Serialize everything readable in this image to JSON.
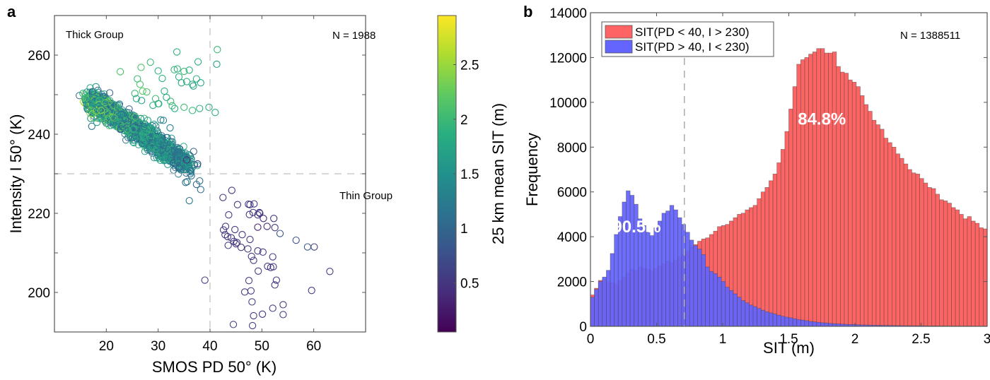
{
  "chart_data": [
    {
      "panel": "a",
      "type": "scatter",
      "title": "",
      "xlabel": "SMOS PD 50° (K)",
      "ylabel": "Intensity I 50° (K)",
      "xlim": [
        10,
        70
      ],
      "ylim": [
        190,
        270
      ],
      "xticks": [
        20,
        30,
        40,
        50,
        60
      ],
      "yticks": [
        200,
        220,
        240,
        260
      ],
      "xtick_labels": [
        "20",
        "30",
        "40",
        "50",
        "60"
      ],
      "ytick_labels": [
        "200",
        "220",
        "240",
        "260"
      ],
      "marker": "open-circle",
      "reference_lines": {
        "x": 40,
        "y": 230,
        "style": "dashed",
        "color": "#cccccc"
      },
      "annotations": {
        "top_left": "Thick Group",
        "top_right": "N = 1988",
        "right_middle": "Thin Group"
      },
      "colorbar": {
        "label": "25 km mean SIT (m)",
        "colormap": "viridis",
        "range": [
          0.05,
          2.95
        ],
        "ticks": [
          0.5,
          1,
          1.5,
          2,
          2.5
        ],
        "tick_labels": [
          "0.5",
          "1",
          "1.5",
          "2",
          "2.5"
        ]
      },
      "dense_cluster": {
        "description": "main thick-group band descending from (~17,249) to (~37,230)",
        "count": 1800,
        "sit_range": [
          0.9,
          2.6
        ]
      },
      "points": [
        [
          15.5,
          250.3,
          1.9
        ],
        [
          16,
          249.8,
          2.0
        ],
        [
          17.5,
          249,
          1.8
        ],
        [
          18,
          252,
          1.6
        ],
        [
          18.5,
          247,
          1.4
        ],
        [
          17,
          244,
          1.5
        ],
        [
          17.2,
          242,
          1.2
        ],
        [
          18.2,
          243,
          1.7
        ],
        [
          19,
          246,
          2.4
        ],
        [
          22.7,
          255.8,
          2.1
        ],
        [
          26.7,
          256.9,
          2.1
        ],
        [
          28.5,
          258.2,
          2.0
        ],
        [
          26,
          254,
          2.0
        ],
        [
          26.5,
          252.6,
          2.1
        ],
        [
          27,
          250.9,
          2.2
        ],
        [
          30,
          256,
          1.9
        ],
        [
          30.8,
          254.1,
          1.9
        ],
        [
          33.6,
          260.8,
          1.9
        ],
        [
          33.1,
          256.3,
          2.0
        ],
        [
          33.7,
          256.5,
          1.9
        ],
        [
          35,
          255.9,
          2.0
        ],
        [
          36,
          256.2,
          1.9
        ],
        [
          34,
          254.5,
          1.9
        ],
        [
          34.5,
          253,
          1.8
        ],
        [
          35.5,
          253.3,
          1.9
        ],
        [
          36.6,
          252.6,
          1.9
        ],
        [
          37.7,
          258.3,
          1.9
        ],
        [
          37.4,
          254,
          1.9
        ],
        [
          38.2,
          253,
          1.8
        ],
        [
          36.8,
          252.2,
          1.6
        ],
        [
          41.4,
          261.4,
          2.0
        ],
        [
          41.3,
          257.7,
          1.7
        ],
        [
          39.8,
          246.8,
          1.8
        ],
        [
          41,
          245.5,
          1.9
        ],
        [
          25.5,
          250.3,
          2.0
        ],
        [
          25.8,
          249,
          1.8
        ],
        [
          26.8,
          248.5,
          1.7
        ],
        [
          27.8,
          250.7,
          2.1
        ],
        [
          29.5,
          249,
          2.0
        ],
        [
          29,
          247.3,
          1.9
        ],
        [
          31.2,
          250.9,
          1.9
        ],
        [
          31.6,
          249.3,
          1.8
        ],
        [
          32.4,
          248.3,
          2.0
        ],
        [
          30,
          247.7,
          1.9
        ],
        [
          32.7,
          247.2,
          2.0
        ],
        [
          33.2,
          246.5,
          1.8
        ],
        [
          35,
          246.8,
          2.0
        ],
        [
          36.6,
          246,
          2.0
        ],
        [
          38,
          246.5,
          1.9
        ],
        [
          30.1,
          247.7,
          1.9
        ],
        [
          30.5,
          243.6,
          1.4
        ],
        [
          31,
          243.5,
          1.3
        ],
        [
          29.2,
          242.5,
          1.8
        ],
        [
          28.5,
          241.6,
          1.7
        ],
        [
          29.8,
          240.5,
          1.7
        ],
        [
          32.3,
          241.6,
          1.3
        ],
        [
          25.6,
          244.4,
          2.2
        ],
        [
          27.3,
          244,
          2.0
        ],
        [
          28,
          243.5,
          1.8
        ],
        [
          24,
          241.2,
          2.0
        ],
        [
          35.5,
          233.5,
          0.5
        ],
        [
          37.6,
          232.5,
          0.6
        ],
        [
          34,
          231.5,
          0.9
        ],
        [
          36.2,
          230,
          1.2
        ],
        [
          36.4,
          229.5,
          1.1
        ],
        [
          35.6,
          228,
          1.3
        ],
        [
          35.3,
          227.8,
          1.1
        ],
        [
          37.4,
          227.3,
          1.0
        ],
        [
          38,
          228.2,
          1.1
        ],
        [
          36,
          223.2,
          1.2
        ],
        [
          38.2,
          226,
          1.1
        ],
        [
          44.2,
          225.8,
          0.5
        ],
        [
          42.5,
          224,
          0.5
        ],
        [
          45.3,
          222.2,
          0.5
        ],
        [
          47.4,
          222.3,
          0.5
        ],
        [
          47.7,
          222.2,
          0.5
        ],
        [
          48.5,
          222.4,
          0.5
        ],
        [
          43.6,
          219.6,
          0.6
        ],
        [
          47.6,
          219.7,
          0.5
        ],
        [
          48.3,
          220.2,
          0.5
        ],
        [
          49.5,
          220.2,
          0.5
        ],
        [
          49.6,
          220,
          0.5
        ],
        [
          49.2,
          219.6,
          0.5
        ],
        [
          50.3,
          218.7,
          0.4
        ],
        [
          52.3,
          218.7,
          0.5
        ],
        [
          43,
          216.7,
          0.5
        ],
        [
          42.6,
          215.8,
          0.5
        ],
        [
          44.8,
          215.9,
          0.5
        ],
        [
          49.2,
          216.5,
          0.3
        ],
        [
          51,
          216.7,
          0.4
        ],
        [
          52.5,
          216.4,
          0.5
        ],
        [
          53.5,
          214.9,
          0.8
        ],
        [
          42.9,
          214.6,
          0.5
        ],
        [
          43.4,
          214.1,
          0.5
        ],
        [
          44.1,
          213.8,
          0.5
        ],
        [
          46.2,
          214.6,
          0.5
        ],
        [
          47.7,
          213.4,
          0.5
        ],
        [
          44.6,
          212.9,
          0.5
        ],
        [
          45,
          212.3,
          0.5
        ],
        [
          45.2,
          212.6,
          0.5
        ],
        [
          43.5,
          211.9,
          0.6
        ],
        [
          46,
          211.4,
          0.5
        ],
        [
          47.3,
          211,
          0.5
        ],
        [
          49.2,
          210.5,
          0.5
        ],
        [
          50.2,
          210.2,
          0.5
        ],
        [
          56.6,
          213.2,
          0.8
        ],
        [
          58.8,
          211.5,
          0.9
        ],
        [
          60.1,
          211.5,
          0.6
        ],
        [
          48,
          209.1,
          0.5
        ],
        [
          52.1,
          209,
          0.5
        ],
        [
          48.4,
          208.1,
          0.5
        ],
        [
          51.1,
          206.6,
          0.5
        ],
        [
          51.7,
          206.3,
          0.5
        ],
        [
          52.2,
          206.5,
          0.5
        ],
        [
          49.3,
          205.4,
          0.6
        ],
        [
          63.1,
          205.3,
          0.6
        ],
        [
          39,
          203.1,
          0.6
        ],
        [
          47.5,
          203,
          0.6
        ],
        [
          52.8,
          203.1,
          0.5
        ],
        [
          52.5,
          201.9,
          0.5
        ],
        [
          59.6,
          200.5,
          0.5
        ],
        [
          47.9,
          200.4,
          0.6
        ],
        [
          46.7,
          200.1,
          0.5
        ],
        [
          48.1,
          197.6,
          0.6
        ],
        [
          54.1,
          196.9,
          0.5
        ],
        [
          52.1,
          196,
          0.6
        ],
        [
          48.4,
          194.1,
          0.6
        ],
        [
          50.1,
          194.5,
          0.5
        ],
        [
          54.1,
          194.4,
          0.6
        ],
        [
          44.5,
          191.9,
          0.6
        ],
        [
          48.2,
          191.6,
          0.6
        ]
      ]
    },
    {
      "panel": "b",
      "type": "bar",
      "subtype": "overlapping-histogram",
      "title": "",
      "xlabel": "SIT (m)",
      "ylabel": "Frequency",
      "xlim": [
        0,
        3
      ],
      "ylim": [
        0,
        14000
      ],
      "xticks": [
        0,
        0.5,
        1,
        1.5,
        2,
        2.5,
        3
      ],
      "yticks": [
        0,
        2000,
        4000,
        6000,
        8000,
        10000,
        12000,
        14000
      ],
      "xtick_labels": [
        "0",
        "0.5",
        "1",
        "1.5",
        "2",
        "2.5",
        "3"
      ],
      "ytick_labels": [
        "0",
        "2000",
        "4000",
        "6000",
        "8000",
        "10000",
        "12000",
        "14000"
      ],
      "bin_width": 0.03,
      "reference_line": {
        "x": 0.71,
        "style": "dashed",
        "color": "#aaaaaa"
      },
      "legend_position": "top-left",
      "annotations": {
        "top_right": "N = 1388511"
      },
      "series": [
        {
          "name": "SIT(PD < 40, I > 230)",
          "color": "#ff6464",
          "percent_label": "84.8%",
          "percent_label_at": [
            1.75,
            9000
          ],
          "values": [
            1400,
            1700,
            2050,
            2100,
            2000,
            1950,
            1900,
            2050,
            2200,
            2400,
            2550,
            2500,
            2650,
            2600,
            2550,
            2500,
            2600,
            2700,
            2800,
            2900,
            2850,
            2950,
            3100,
            3200,
            3350,
            3550,
            3650,
            3800,
            3900,
            3950,
            4100,
            4250,
            4450,
            4500,
            4550,
            4700,
            4850,
            5000,
            5050,
            5200,
            5300,
            5400,
            5700,
            6000,
            6200,
            6500,
            6800,
            7300,
            7900,
            8700,
            9700,
            10700,
            11700,
            11900,
            12000,
            12150,
            12250,
            12400,
            12400,
            12200,
            12200,
            12250,
            11600,
            11350,
            11300,
            11000,
            10900,
            10700,
            10300,
            9900,
            9600,
            9200,
            9000,
            8800,
            8400,
            8200,
            8000,
            7700,
            7500,
            7250,
            7000,
            6850,
            6800,
            6600,
            6400,
            6200,
            6150,
            5900,
            5650,
            5600,
            5500,
            5300,
            5200,
            5000,
            4800,
            4900,
            4700,
            4600,
            4400,
            4350
          ]
        },
        {
          "name": "SIT(PD > 40, I < 230)",
          "color": "#6464ff",
          "percent_label": "90.5%",
          "percent_label_at": [
            0.35,
            4200
          ],
          "values": [
            1300,
            1650,
            2000,
            2200,
            2500,
            3250,
            4100,
            4900,
            5550,
            6050,
            5850,
            5450,
            4800,
            4500,
            4200,
            4050,
            4400,
            4700,
            5050,
            5150,
            5400,
            5200,
            4850,
            4550,
            4200,
            3850,
            3600,
            3450,
            3200,
            2650,
            2450,
            2350,
            2200,
            2000,
            1750,
            1600,
            1450,
            1300,
            1150,
            1050,
            950,
            880,
            800,
            720,
            650,
            600,
            550,
            500,
            450,
            410,
            380,
            340,
            300,
            280,
            250,
            220,
            200,
            180,
            160,
            150,
            130,
            120,
            110,
            100,
            90,
            85,
            80,
            70,
            65,
            60,
            55,
            50,
            48,
            45,
            42,
            40,
            38,
            35,
            33,
            30,
            28,
            26,
            25,
            24,
            22,
            20,
            20,
            18,
            17,
            16,
            15,
            14,
            13,
            12,
            12,
            11,
            10,
            10,
            9,
            9
          ]
        }
      ]
    }
  ]
}
